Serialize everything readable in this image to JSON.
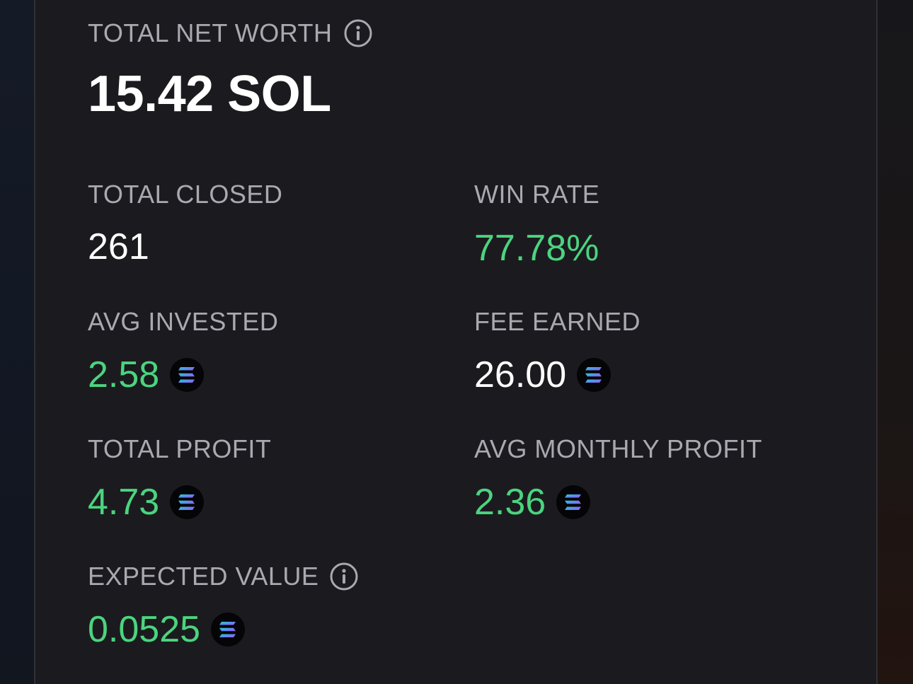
{
  "net_worth": {
    "label": "TOTAL NET WORTH",
    "value": "15.42 SOL",
    "icon": "info-icon"
  },
  "stats": {
    "total_closed": {
      "label": "TOTAL CLOSED",
      "value": "261",
      "color": "#ffffff"
    },
    "win_rate": {
      "label": "WIN RATE",
      "value": "77.78%",
      "color": "#4bd47f"
    },
    "avg_invested": {
      "label": "AVG INVESTED",
      "value": "2.58",
      "color": "#4bd47f",
      "icon": "solana-icon"
    },
    "fee_earned": {
      "label": "FEE EARNED",
      "value": "26.00",
      "color": "#ffffff",
      "icon": "solana-icon"
    },
    "total_profit": {
      "label": "TOTAL PROFIT",
      "value": "4.73",
      "color": "#4bd47f",
      "icon": "solana-icon"
    },
    "avg_monthly_profit": {
      "label": "AVG MONTHLY PROFIT",
      "value": "2.36",
      "color": "#4bd47f",
      "icon": "solana-icon"
    },
    "expected_value": {
      "label": "EXPECTED VALUE",
      "value": "0.0525",
      "color": "#4bd47f",
      "icon": "solana-icon",
      "label_icon": "info-icon"
    }
  },
  "colors": {
    "card_background": "#1b1b1f",
    "label": "#a9a9b0",
    "positive": "#4bd47f",
    "neutral": "#ffffff"
  }
}
